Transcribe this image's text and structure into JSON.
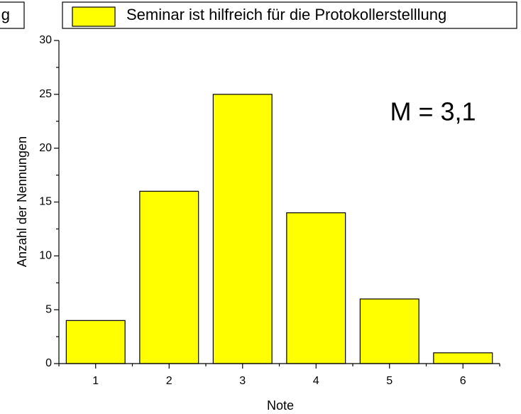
{
  "chart_data": {
    "type": "bar",
    "partial_label": "g",
    "legend": "Seminar ist hilfreich für die Protokollerstelllung",
    "annotation": "M = 3,1",
    "x_label": "Note",
    "y_label": "Anzahl der Nennungen",
    "x": [
      1,
      2,
      3,
      4,
      5,
      6
    ],
    "values": [
      4,
      16,
      25,
      14,
      6,
      1
    ],
    "color": "#ffff00",
    "xlim": [
      0.5,
      6.5
    ],
    "xticks": [
      1,
      2,
      3,
      4,
      5,
      6
    ],
    "ylim": [
      0,
      30
    ],
    "yticks": [
      0,
      5,
      10,
      15,
      20,
      25,
      30
    ]
  }
}
